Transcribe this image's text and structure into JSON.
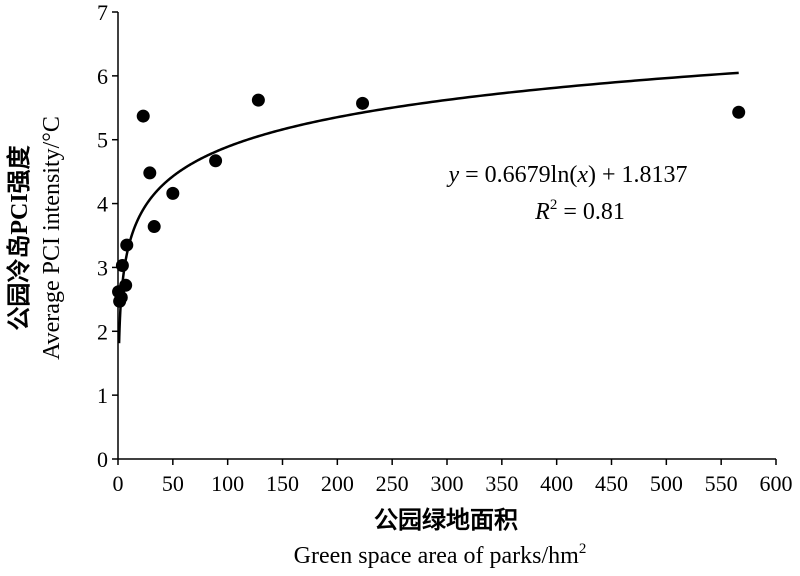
{
  "chart_data": {
    "type": "scatter",
    "xlabel_cn": "公园绿地面积",
    "xlabel_en": "Green space area of parks/hm",
    "xlabel_en_sup": "2",
    "ylabel_cn": "公园冷岛PCI强度",
    "ylabel_en": "Average PCI intensity/°C",
    "xlim": [
      0,
      600
    ],
    "ylim": [
      0,
      7
    ],
    "x_ticks": [
      "0",
      "50",
      "100",
      "150",
      "200",
      "250",
      "300",
      "350",
      "400",
      "450",
      "500",
      "550",
      "600"
    ],
    "y_ticks": [
      "0",
      "1",
      "2",
      "3",
      "4",
      "5",
      "6",
      "7"
    ],
    "grid": false,
    "legend": "none",
    "points": [
      {
        "x": 0.5,
        "y": 2.62
      },
      {
        "x": 1.5,
        "y": 2.47
      },
      {
        "x": 3,
        "y": 2.53
      },
      {
        "x": 4,
        "y": 3.03
      },
      {
        "x": 7,
        "y": 2.72
      },
      {
        "x": 8,
        "y": 3.35
      },
      {
        "x": 23,
        "y": 5.37
      },
      {
        "x": 29,
        "y": 4.48
      },
      {
        "x": 33,
        "y": 3.64
      },
      {
        "x": 50,
        "y": 4.16
      },
      {
        "x": 89,
        "y": 4.67
      },
      {
        "x": 128,
        "y": 5.62
      },
      {
        "x": 223,
        "y": 5.57
      },
      {
        "x": 566,
        "y": 5.43
      }
    ],
    "trendline": {
      "type": "log",
      "a": 0.6679,
      "b": 1.8137,
      "x_range": [
        1,
        566
      ],
      "equation": {
        "y_var": "y",
        "eq1": " = 0.6679ln(",
        "x_var": "x",
        "eq2": ") + 1.8137"
      },
      "r2": {
        "var": "R",
        "sup": "2",
        "rest": " = 0.81"
      }
    }
  }
}
